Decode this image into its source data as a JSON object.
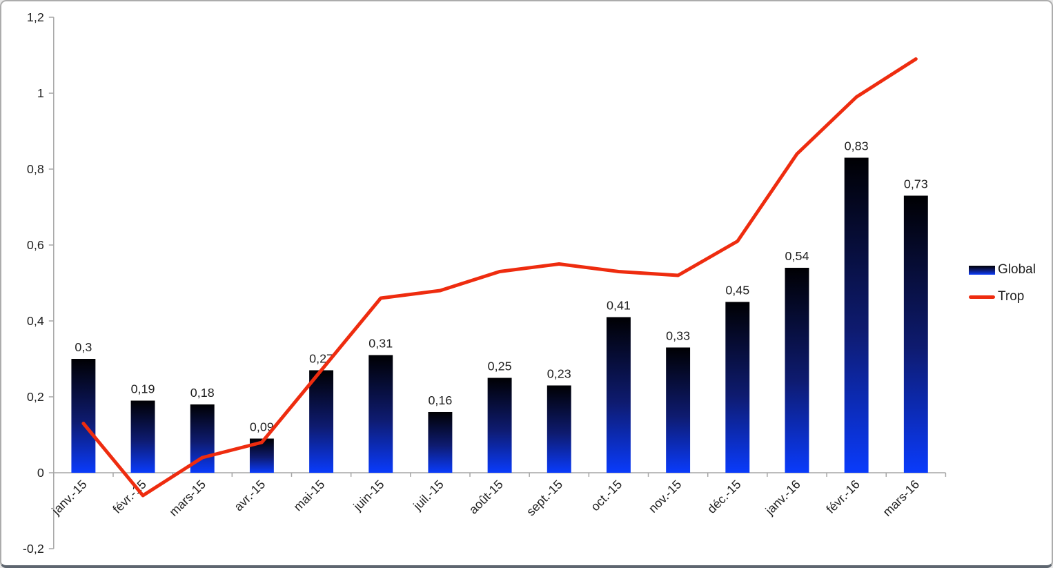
{
  "frame": {
    "background": "#ffffff",
    "border_color": "#acacac",
    "border_bottom_color": "#5e6670"
  },
  "chart_data": {
    "type": "bar",
    "subtype": "combo-bar-line",
    "title": "",
    "xlabel": "",
    "ylabel": "",
    "categories": [
      "janv.-15",
      "févr.-15",
      "mars-15",
      "avr.-15",
      "mai-15",
      "juin-15",
      "juil.-15",
      "août-15",
      "sept.-15",
      "oct.-15",
      "nov.-15",
      "déc.-15",
      "janv.-16",
      "févr.-16",
      "mars-16"
    ],
    "series": [
      {
        "name": "Global",
        "type": "bar",
        "values": [
          0.3,
          0.19,
          0.18,
          0.09,
          0.27,
          0.31,
          0.16,
          0.25,
          0.23,
          0.41,
          0.33,
          0.45,
          0.54,
          0.83,
          0.73
        ],
        "labels": [
          "0,3",
          "0,19",
          "0,18",
          "0,09",
          "0,27",
          "0,31",
          "0,16",
          "0,25",
          "0,23",
          "0,41",
          "0,33",
          "0,45",
          "0,54",
          "0,83",
          "0,73"
        ],
        "bar_gradient": {
          "top": "#000003",
          "mid": "#0e1b70",
          "bottom": "#0a3bfb"
        }
      },
      {
        "name": "Trop",
        "type": "line",
        "values": [
          0.13,
          -0.06,
          0.04,
          0.08,
          0.27,
          0.46,
          0.48,
          0.53,
          0.55,
          0.53,
          0.52,
          0.61,
          0.84,
          0.99,
          1.09
        ],
        "color": "#ee2c0f"
      }
    ],
    "ylim": [
      -0.2,
      1.2
    ],
    "ytick_step": 0.2,
    "ytick_labels": [
      "-0,2",
      "0",
      "0,2",
      "0,4",
      "0,6",
      "0,8",
      "1",
      "1,2"
    ],
    "grid": false,
    "legend_position": "right",
    "axis_color": "#a6a6a6",
    "text_color": "#1f1f1f"
  }
}
